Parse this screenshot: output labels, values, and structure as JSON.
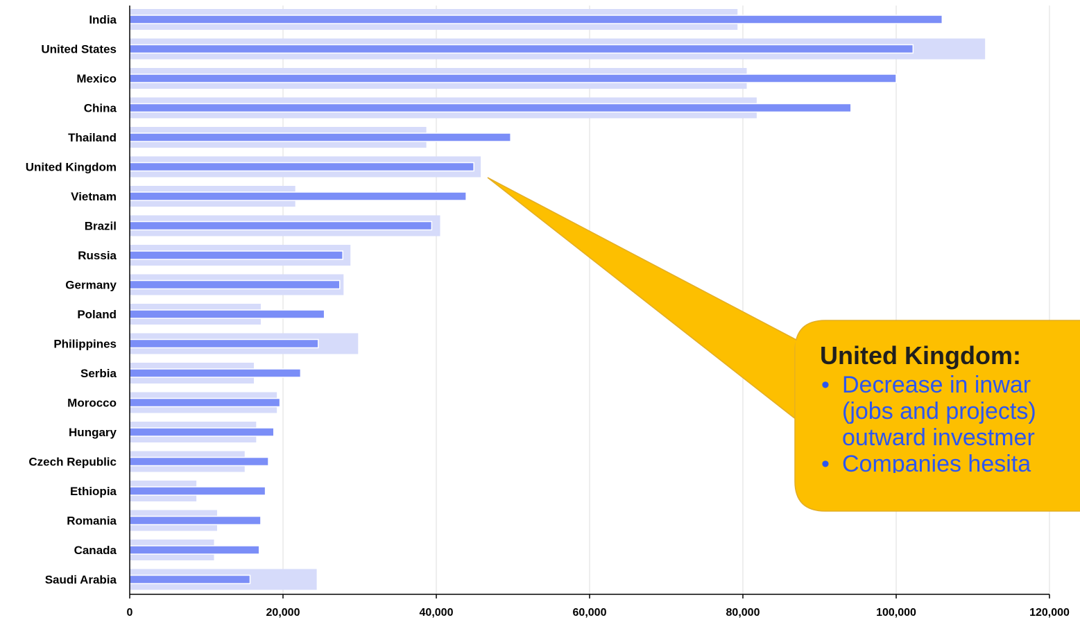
{
  "chart_data": {
    "type": "bar",
    "orientation": "horizontal",
    "categories": [
      "India",
      "United States",
      "Mexico",
      "China",
      "Thailand",
      "United Kingdom",
      "Vietnam",
      "Brazil",
      "Russia",
      "Germany",
      "Poland",
      "Philippines",
      "Serbia",
      "Morocco",
      "Hungary",
      "Czech Republic",
      "Ethiopia",
      "Romania",
      "Canada",
      "Saudi Arabia"
    ],
    "series": [
      {
        "values": [
          79300,
          111600,
          80500,
          81800,
          38700,
          45800,
          21600,
          40500,
          28800,
          27900,
          17100,
          29800,
          16200,
          19200,
          16500,
          15000,
          8700,
          11400,
          11000,
          24400
        ],
        "color": "#d6dbfa"
      },
      {
        "values": [
          106000,
          102200,
          100000,
          94100,
          49700,
          44900,
          43900,
          39400,
          27800,
          27400,
          25400,
          24600,
          22300,
          19600,
          18800,
          18100,
          17700,
          17100,
          16900,
          15700
        ],
        "color": "#7b8ef7"
      }
    ],
    "xlim": [
      0,
      120000
    ],
    "xticks": [
      "0",
      "20,000",
      "40,000",
      "60,000",
      "80,000",
      "100,000",
      "120,000"
    ],
    "grid": true,
    "legend": "none"
  },
  "callout": {
    "title": "United Kingdom:",
    "bullets": [
      "Decrease in inwar",
      "(jobs and projects)",
      "outward investmer",
      "Companies hesita"
    ],
    "fill": "#fdbf00",
    "border": "#e2ad26"
  }
}
